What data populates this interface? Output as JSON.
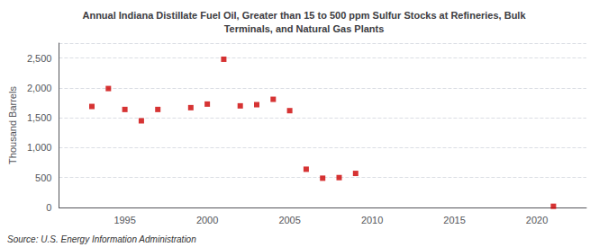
{
  "chart_data": {
    "type": "scatter",
    "title": "Annual Indiana Distillate Fuel Oil, Greater than 15 to 500 ppm Sulfur Stocks at Refineries, Bulk\nTerminals, and Natural Gas Plants",
    "ylabel": "Thousand Barrels",
    "source": "Source: U.S. Energy Information Administration",
    "x": [
      1993,
      1994,
      1995,
      1996,
      1997,
      1999,
      2000,
      2001,
      2002,
      2003,
      2004,
      2005,
      2006,
      2007,
      2008,
      2009,
      2021
    ],
    "values": [
      1690,
      1990,
      1640,
      1450,
      1640,
      1670,
      1730,
      2480,
      1700,
      1720,
      1810,
      1620,
      640,
      490,
      500,
      570,
      20
    ],
    "color": "#cc0000",
    "marker": "square",
    "xlim": [
      1991,
      2023
    ],
    "xticks": [
      1995,
      2000,
      2005,
      2010,
      2015,
      2020
    ],
    "ylim": [
      0,
      2750
    ],
    "yticks": [
      0,
      500,
      {
        "value": 1000,
        "label": "1,000"
      },
      {
        "value": 1500,
        "label": "1,500"
      },
      {
        "value": 2000,
        "label": "2,000"
      },
      {
        "value": 2500,
        "label": "2,500"
      }
    ],
    "grid": true
  }
}
